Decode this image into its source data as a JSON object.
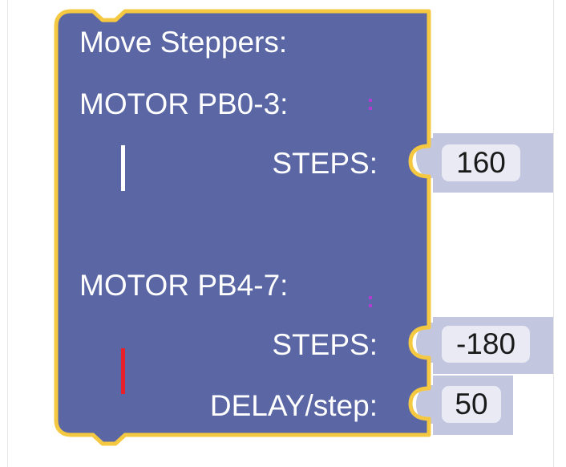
{
  "block": {
    "title": "Move Steppers:",
    "block_color": "#5b67a5",
    "outline_color": "#f5c842",
    "slot_color": "#c2c6de",
    "motor_a": {
      "label": "MOTOR PB0-3:",
      "color_indicator": "#ffffff",
      "steps_label": "STEPS:",
      "steps_value": "160"
    },
    "motor_b": {
      "label": "MOTOR PB4-7:",
      "color_indicator": "#e8202a",
      "steps_label": "STEPS:",
      "steps_value": "-180",
      "delay_label": "DELAY/step:",
      "delay_value": "50"
    }
  }
}
